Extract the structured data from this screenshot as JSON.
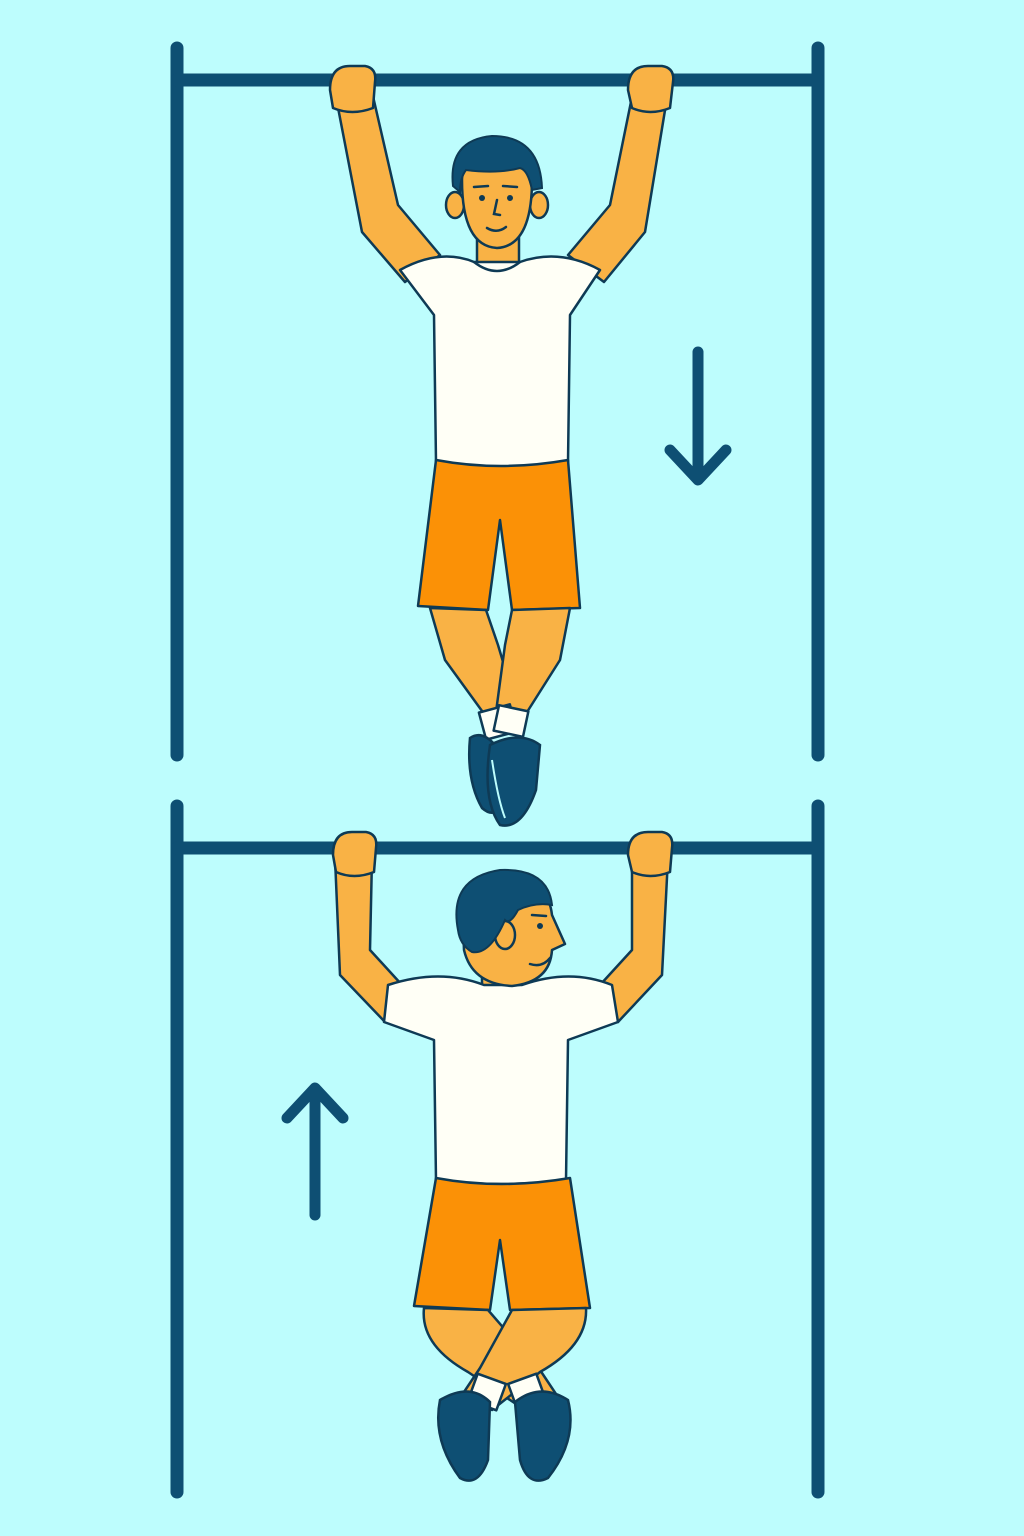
{
  "illustration": {
    "panels": [
      {
        "pose": "dead-hang",
        "arrow": "down"
      },
      {
        "pose": "pulled-up",
        "arrow": "up"
      }
    ]
  },
  "colors": {
    "background": "#BDFDFD",
    "bar": "#0E4F73",
    "skin": "#F9B245",
    "shirt": "#FFFFF6",
    "shorts": "#FB9106",
    "hair": "#0E4F73",
    "shoes": "#0E4F73",
    "outline": "#0E3A55"
  }
}
